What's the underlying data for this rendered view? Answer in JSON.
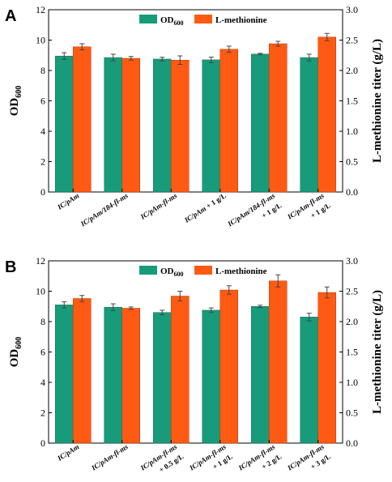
{
  "colors": {
    "od": "#189b7a",
    "met": "#ff5a14",
    "axis": "#000000",
    "error": "#444444"
  },
  "chart_data": [
    {
      "panel": "A",
      "type": "bar",
      "legend": [
        "OD600",
        "L-methionine"
      ],
      "legend_labels": {
        "od_main": "OD",
        "od_sub": "600",
        "met": "L-methionine"
      },
      "legend_position": "top-center",
      "ylabel_left": {
        "main": "OD",
        "sub": "600"
      },
      "ylabel_right": "L-methionine titer (g/L)",
      "yleft_lim": [
        0,
        12
      ],
      "yright_lim": [
        0,
        3.0
      ],
      "yleft_ticks": [
        "0",
        "2",
        "4",
        "6",
        "8",
        "10",
        "12"
      ],
      "yright_ticks": [
        "0.0",
        "0.5",
        "1.0",
        "1.5",
        "2.0",
        "2.5",
        "3.0"
      ],
      "categories": [
        [
          {
            "t": "IC/pAm",
            "i": true
          }
        ],
        [
          {
            "t": "IC/pAm/184-fl-ms",
            "i": true
          }
        ],
        [
          {
            "t": "IC/pAm-fl-ms",
            "i": true
          }
        ],
        [
          {
            "t": "IC/pAm",
            "i": true
          },
          {
            "t": " + 1 g/L",
            "i": false
          }
        ],
        [
          {
            "t": "IC/pAm/184-fl-ms",
            "i": true
          }
        ],
        [
          {
            "t": "IC/pAm-fl-ms",
            "i": true
          }
        ]
      ],
      "category_second_lines": [
        "",
        "",
        "",
        "",
        "+ 1 g/L",
        "+ 1 g/L"
      ],
      "series": [
        {
          "name": "OD600",
          "axis": "left",
          "values": [
            8.95,
            8.85,
            8.75,
            8.7,
            9.08,
            8.85
          ],
          "errors": [
            0.22,
            0.22,
            0.12,
            0.18,
            0.05,
            0.22
          ]
        },
        {
          "name": "L-methionine",
          "axis": "right",
          "values": [
            2.39,
            2.2,
            2.17,
            2.35,
            2.44,
            2.55
          ],
          "errors": [
            0.05,
            0.03,
            0.07,
            0.05,
            0.04,
            0.06
          ]
        }
      ]
    },
    {
      "panel": "B",
      "type": "bar",
      "legend": [
        "OD600",
        "L-methionine"
      ],
      "legend_labels": {
        "od_main": "OD",
        "od_sub": "600",
        "met": "L-methionine"
      },
      "legend_position": "top-center",
      "ylabel_left": {
        "main": "OD",
        "sub": "600"
      },
      "ylabel_right": "L-methionine titer (g/L)",
      "yleft_lim": [
        0,
        12
      ],
      "yright_lim": [
        0,
        3.0
      ],
      "yleft_ticks": [
        "0",
        "2",
        "4",
        "6",
        "8",
        "10",
        "12"
      ],
      "yright_ticks": [
        "0.0",
        "0.5",
        "1.0",
        "1.5",
        "2.0",
        "2.5",
        "3.0"
      ],
      "categories": [
        [
          {
            "t": "IC/pAm",
            "i": true
          }
        ],
        [
          {
            "t": "IC/pAm-fl-ms",
            "i": true
          }
        ],
        [
          {
            "t": "IC/pAm-fl-ms",
            "i": true
          }
        ],
        [
          {
            "t": "IC/pAm-fl-ms",
            "i": true
          }
        ],
        [
          {
            "t": "IC/pAm-fl-ms",
            "i": true
          }
        ],
        [
          {
            "t": "IC/pAm-fl-ms",
            "i": true
          }
        ]
      ],
      "category_second_lines": [
        "",
        "",
        "+ 0.5 g/L",
        "+ 1 g/L",
        "+ 2 g/L",
        "+ 3 g/L"
      ],
      "series": [
        {
          "name": "OD600",
          "axis": "left",
          "values": [
            9.1,
            8.95,
            8.6,
            8.75,
            9.0,
            8.3
          ],
          "errors": [
            0.2,
            0.22,
            0.15,
            0.15,
            0.08,
            0.25
          ]
        },
        {
          "name": "L-methionine",
          "axis": "right",
          "values": [
            2.38,
            2.22,
            2.42,
            2.52,
            2.67,
            2.48
          ],
          "errors": [
            0.05,
            0.02,
            0.08,
            0.07,
            0.1,
            0.09
          ]
        }
      ]
    }
  ]
}
